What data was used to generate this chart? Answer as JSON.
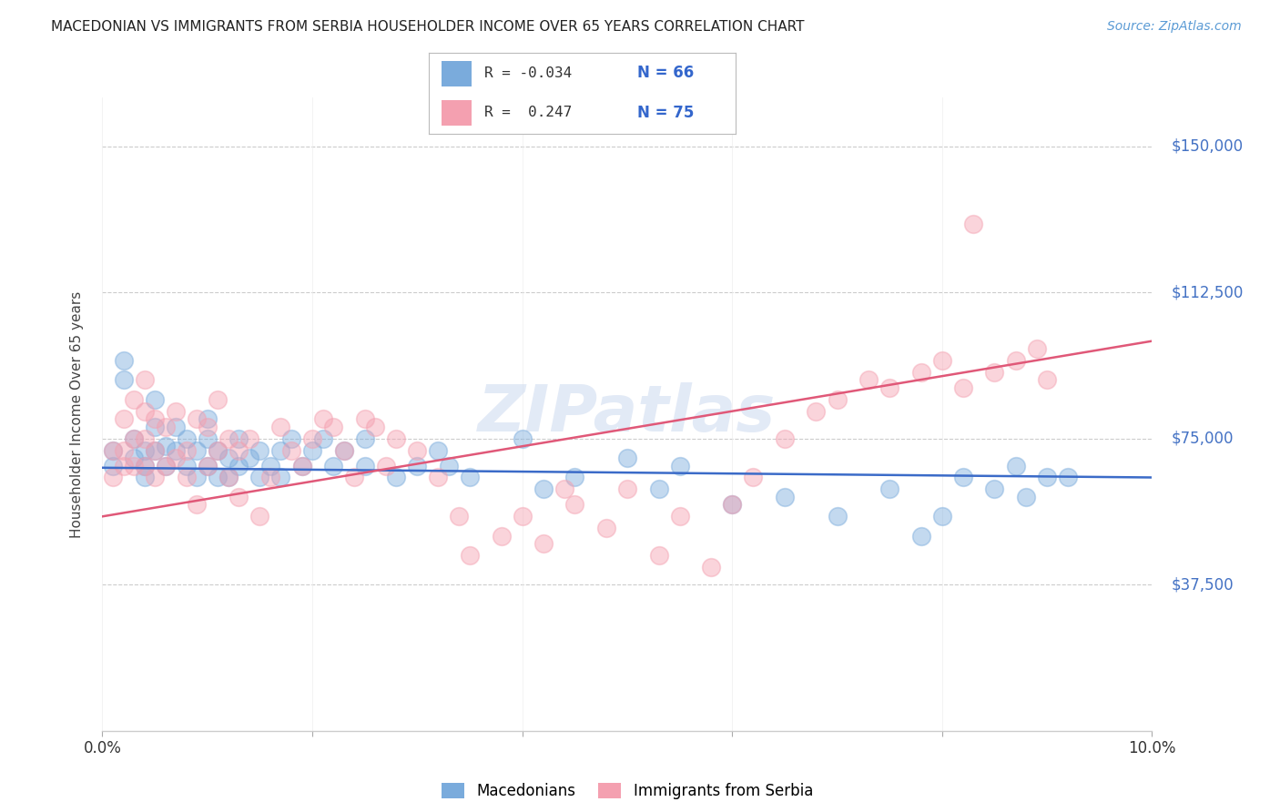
{
  "title": "MACEDONIAN VS IMMIGRANTS FROM SERBIA HOUSEHOLDER INCOME OVER 65 YEARS CORRELATION CHART",
  "source": "Source: ZipAtlas.com",
  "ylabel": "Householder Income Over 65 years",
  "xlim": [
    0.0,
    0.1
  ],
  "ylim": [
    0,
    162500
  ],
  "yticks": [
    0,
    37500,
    75000,
    112500,
    150000
  ],
  "ytick_labels": [
    "",
    "$37,500",
    "$75,000",
    "$112,500",
    "$150,000"
  ],
  "xticks": [
    0.0,
    0.02,
    0.04,
    0.06,
    0.08,
    0.1
  ],
  "xtick_labels": [
    "0.0%",
    "",
    "",
    "",
    "",
    "10.0%"
  ],
  "color_blue": "#7AABDC",
  "color_pink": "#F4A0B0",
  "line_color_blue": "#3B6BC8",
  "line_color_pink": "#E05878",
  "watermark": "ZIPatlas",
  "mac_line_y0": 67500,
  "mac_line_y1": 65000,
  "ser_line_y0": 55000,
  "ser_line_y1": 100000,
  "macedonian_x": [
    0.001,
    0.001,
    0.002,
    0.002,
    0.003,
    0.003,
    0.004,
    0.004,
    0.004,
    0.005,
    0.005,
    0.005,
    0.006,
    0.006,
    0.007,
    0.007,
    0.008,
    0.008,
    0.009,
    0.009,
    0.01,
    0.01,
    0.01,
    0.011,
    0.011,
    0.012,
    0.012,
    0.013,
    0.013,
    0.014,
    0.015,
    0.015,
    0.016,
    0.017,
    0.017,
    0.018,
    0.019,
    0.02,
    0.021,
    0.022,
    0.023,
    0.025,
    0.025,
    0.028,
    0.03,
    0.032,
    0.033,
    0.035,
    0.04,
    0.042,
    0.045,
    0.05,
    0.053,
    0.055,
    0.06,
    0.065,
    0.07,
    0.075,
    0.078,
    0.08,
    0.082,
    0.085,
    0.087,
    0.088,
    0.09,
    0.092
  ],
  "macedonian_y": [
    68000,
    72000,
    95000,
    90000,
    75000,
    70000,
    72000,
    68000,
    65000,
    85000,
    78000,
    72000,
    68000,
    73000,
    78000,
    72000,
    75000,
    68000,
    72000,
    65000,
    80000,
    75000,
    68000,
    72000,
    65000,
    70000,
    65000,
    68000,
    75000,
    70000,
    72000,
    65000,
    68000,
    72000,
    65000,
    75000,
    68000,
    72000,
    75000,
    68000,
    72000,
    75000,
    68000,
    65000,
    68000,
    72000,
    68000,
    65000,
    75000,
    62000,
    65000,
    70000,
    62000,
    68000,
    58000,
    60000,
    55000,
    62000,
    50000,
    55000,
    65000,
    62000,
    68000,
    60000,
    65000,
    65000
  ],
  "serbia_x": [
    0.001,
    0.001,
    0.002,
    0.002,
    0.002,
    0.003,
    0.003,
    0.003,
    0.004,
    0.004,
    0.004,
    0.004,
    0.005,
    0.005,
    0.005,
    0.006,
    0.006,
    0.007,
    0.007,
    0.008,
    0.008,
    0.009,
    0.009,
    0.01,
    0.01,
    0.011,
    0.011,
    0.012,
    0.012,
    0.013,
    0.013,
    0.014,
    0.015,
    0.016,
    0.017,
    0.018,
    0.019,
    0.02,
    0.021,
    0.022,
    0.023,
    0.024,
    0.025,
    0.026,
    0.027,
    0.028,
    0.03,
    0.032,
    0.034,
    0.035,
    0.038,
    0.04,
    0.042,
    0.044,
    0.045,
    0.048,
    0.05,
    0.053,
    0.055,
    0.058,
    0.06,
    0.062,
    0.065,
    0.068,
    0.07,
    0.073,
    0.075,
    0.078,
    0.08,
    0.082,
    0.085,
    0.087,
    0.089,
    0.09,
    0.083
  ],
  "serbia_y": [
    72000,
    65000,
    80000,
    72000,
    68000,
    85000,
    75000,
    68000,
    90000,
    82000,
    75000,
    68000,
    80000,
    72000,
    65000,
    78000,
    68000,
    82000,
    70000,
    72000,
    65000,
    80000,
    58000,
    78000,
    68000,
    85000,
    72000,
    75000,
    65000,
    72000,
    60000,
    75000,
    55000,
    65000,
    78000,
    72000,
    68000,
    75000,
    80000,
    78000,
    72000,
    65000,
    80000,
    78000,
    68000,
    75000,
    72000,
    65000,
    55000,
    45000,
    50000,
    55000,
    48000,
    62000,
    58000,
    52000,
    62000,
    45000,
    55000,
    42000,
    58000,
    65000,
    75000,
    82000,
    85000,
    90000,
    88000,
    92000,
    95000,
    88000,
    92000,
    95000,
    98000,
    90000,
    130000
  ]
}
